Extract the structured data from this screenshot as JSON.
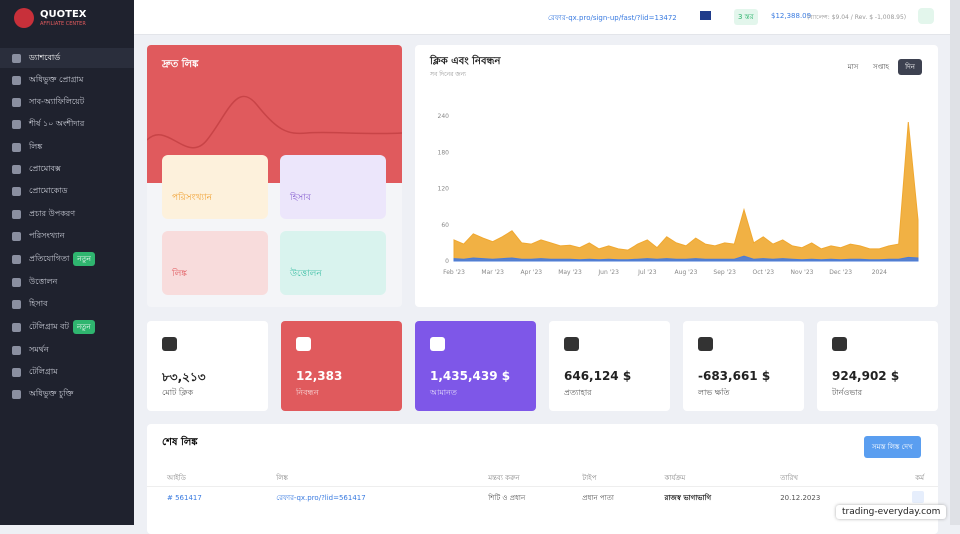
{
  "sidebar": {
    "brand": "QUOTEX",
    "brand_sub": "AFFILIATE CENTER",
    "items": [
      {
        "label": "ড্যাশবোর্ড"
      },
      {
        "label": "অধিভুক্ত প্রোগ্রাম"
      },
      {
        "label": "সাব-অ্যাফিলিয়েট"
      },
      {
        "label": "শীর্ষ ১০ অংশীদার"
      },
      {
        "label": "লিঙ্ক"
      },
      {
        "label": "প্রোমোবক্স"
      },
      {
        "label": "প্রোমোকোড"
      },
      {
        "label": "প্রচার উপকরণ"
      },
      {
        "label": "পরিসংখ্যান"
      },
      {
        "label": "প্রতিযোগিতা",
        "badge": "নতুন"
      },
      {
        "label": "উত্তোলন"
      },
      {
        "label": "হিসাব"
      },
      {
        "label": "টেলিগ্রাম বট",
        "badge": "নতুন"
      },
      {
        "label": "সমর্থন"
      },
      {
        "label": "টেলিগ্রাম"
      },
      {
        "label": "অধিভুক্ত চুক্তি"
      }
    ]
  },
  "topbar": {
    "link": "রেফার-qx.pro/sign-up/fast/?lid=13472",
    "level": "3 স্তর",
    "balance": "$12,388.09",
    "balance_note": "(ব্যালেন্স: $9.04 / Rev. $ -1,008.95)"
  },
  "quick_links": {
    "title": "দ্রুত লিঙ্ক",
    "tiles": [
      "পরিসংখ্যান",
      "হিসাব",
      "লিঙ্ক",
      "উত্তোলন"
    ]
  },
  "chart_controls": [
    "মাস",
    "সপ্তাহ",
    "দিন"
  ],
  "chart_data": {
    "type": "area",
    "title": "ক্লিক এবং নিবন্ধন",
    "subtitle": "সব দিনের জন্য",
    "categories": [
      "Feb '23",
      null,
      null,
      null,
      "Mar '23",
      null,
      null,
      null,
      "Apr '23",
      null,
      null,
      null,
      "May '23",
      null,
      null,
      null,
      "Jun '23",
      null,
      null,
      null,
      "Jul '23",
      null,
      null,
      null,
      "Aug '23",
      null,
      null,
      null,
      "Sep '23",
      null,
      null,
      null,
      "Oct '23",
      null,
      null,
      null,
      "Nov '23",
      null,
      null,
      null,
      "Dec '23",
      null,
      null,
      null,
      "2024",
      null,
      null,
      null,
      null
    ],
    "series": [
      {
        "color": "#f0a830",
        "values": [
          35,
          28,
          45,
          38,
          32,
          40,
          50,
          30,
          28,
          35,
          30,
          25,
          26,
          22,
          30,
          20,
          25,
          20,
          18,
          28,
          35,
          22,
          40,
          30,
          25,
          38,
          28,
          25,
          30,
          28,
          85,
          30,
          40,
          28,
          35,
          25,
          22,
          30,
          20,
          25,
          22,
          28,
          25,
          20,
          20,
          25,
          28,
          230,
          68
        ]
      },
      {
        "color": "#4a7bd8",
        "values": [
          4,
          3,
          5,
          4,
          3,
          4,
          5,
          3,
          3,
          4,
          3,
          3,
          3,
          2,
          3,
          2,
          3,
          2,
          2,
          3,
          4,
          3,
          4,
          3,
          3,
          4,
          3,
          3,
          3,
          3,
          8,
          3,
          4,
          3,
          4,
          3,
          2,
          3,
          2,
          3,
          2,
          3,
          3,
          2,
          2,
          3,
          3,
          6,
          5
        ]
      }
    ],
    "ylim": [
      0,
      265
    ],
    "yticks": [
      0,
      60,
      120,
      180,
      240
    ],
    "grid": false
  },
  "stats": [
    {
      "value": "৮৩,২১৩",
      "label": "মোট ক্লিক"
    },
    {
      "value": "12,383",
      "label": "নিবন্ধন"
    },
    {
      "value": "1,435,439 $",
      "label": "আমানত"
    },
    {
      "value": "646,124 $",
      "label": "প্রত্যাহার"
    },
    {
      "value": "-683,661 $",
      "label": "লাভ ক্ষতি"
    },
    {
      "value": "924,902 $",
      "label": "টার্নওভার"
    }
  ],
  "table": {
    "title": "শেষ লিঙ্ক",
    "button": "সমস্ত লিঙ্ক দেখ",
    "headers": [
      "আইডি",
      "লিঙ্ক",
      "মন্তব্য করুন",
      "টাইপ",
      "কার্যক্রম",
      "তারিখ",
      "কর্ম"
    ],
    "rows": [
      [
        "# 561417",
        "রেফার-qx.pro/?lid=561417",
        "শিটি ও প্রধান",
        "প্রধান পাতা",
        "রাজস্ব ভাগাভাগি",
        "20.12.2023"
      ]
    ]
  },
  "watermark": "trading-everyday.com"
}
